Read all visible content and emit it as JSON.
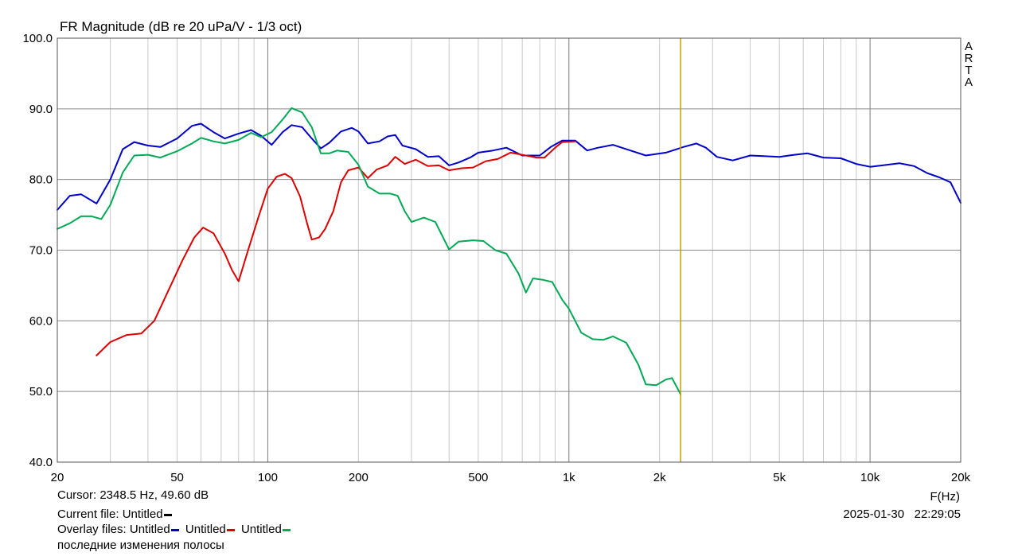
{
  "chart_data": {
    "type": "line",
    "title": "FR Magnitude (dB re 20 uPa/V - 1/3 oct)",
    "xlabel": "F(Hz)",
    "x_scale": "log",
    "xlim": [
      20,
      20000
    ],
    "ylim": [
      40,
      100
    ],
    "grid": true,
    "watermark": "ARTA",
    "x_tick_values": [
      20,
      50,
      100,
      200,
      500,
      1000,
      2000,
      5000,
      10000,
      20000
    ],
    "x_tick_labels": [
      "20",
      "50",
      "100",
      "200",
      "500",
      "1k",
      "2k",
      "5k",
      "10k",
      "20k"
    ],
    "y_tick_values": [
      100,
      90,
      80,
      70,
      60,
      50,
      40
    ],
    "y_tick_labels": [
      "100.0",
      "90.0",
      "80.0",
      "70.0",
      "60.0",
      "50.0",
      "40.0"
    ],
    "cursor": {
      "x": 2348.5,
      "color": "#c8a000"
    },
    "series": [
      {
        "color": "#0000cc",
        "points": [
          [
            20,
            75.7
          ],
          [
            22,
            77.7
          ],
          [
            24,
            77.9
          ],
          [
            27,
            76.6
          ],
          [
            30,
            80
          ],
          [
            33,
            84.3
          ],
          [
            36,
            85.3
          ],
          [
            40,
            84.8
          ],
          [
            44,
            84.6
          ],
          [
            50,
            85.8
          ],
          [
            56,
            87.6
          ],
          [
            60,
            87.9
          ],
          [
            66,
            86.7
          ],
          [
            72,
            85.8
          ],
          [
            80,
            86.5
          ],
          [
            88,
            87
          ],
          [
            95,
            86.2
          ],
          [
            103,
            84.9
          ],
          [
            112,
            86.7
          ],
          [
            120,
            87.7
          ],
          [
            130,
            87.4
          ],
          [
            140,
            85.8
          ],
          [
            150,
            84.4
          ],
          [
            160,
            85.2
          ],
          [
            175,
            86.8
          ],
          [
            190,
            87.3
          ],
          [
            200,
            86.8
          ],
          [
            215,
            85.1
          ],
          [
            235,
            85.4
          ],
          [
            250,
            86.1
          ],
          [
            265,
            86.3
          ],
          [
            280,
            84.8
          ],
          [
            310,
            84.3
          ],
          [
            340,
            83.2
          ],
          [
            370,
            83.3
          ],
          [
            400,
            82
          ],
          [
            430,
            82.4
          ],
          [
            470,
            83.1
          ],
          [
            500,
            83.8
          ],
          [
            560,
            84.1
          ],
          [
            620,
            84.5
          ],
          [
            700,
            83.4
          ],
          [
            800,
            83.4
          ],
          [
            870,
            84.6
          ],
          [
            950,
            85.5
          ],
          [
            1050,
            85.5
          ],
          [
            1150,
            84.1
          ],
          [
            1250,
            84.5
          ],
          [
            1400,
            84.9
          ],
          [
            1600,
            84.1
          ],
          [
            1800,
            83.4
          ],
          [
            2100,
            83.8
          ],
          [
            2400,
            84.6
          ],
          [
            2650,
            85.1
          ],
          [
            2850,
            84.5
          ],
          [
            3100,
            83.2
          ],
          [
            3500,
            82.7
          ],
          [
            4000,
            83.4
          ],
          [
            4500,
            83.3
          ],
          [
            5000,
            83.2
          ],
          [
            5600,
            83.5
          ],
          [
            6200,
            83.7
          ],
          [
            7000,
            83.1
          ],
          [
            8000,
            83
          ],
          [
            9000,
            82.2
          ],
          [
            10000,
            81.8
          ],
          [
            11000,
            82
          ],
          [
            12500,
            82.3
          ],
          [
            14000,
            81.9
          ],
          [
            15500,
            80.9
          ],
          [
            17000,
            80.3
          ],
          [
            18500,
            79.6
          ],
          [
            20000,
            76.7
          ]
        ]
      },
      {
        "color": "#dd0000",
        "points": [
          [
            27,
            55.1
          ],
          [
            30,
            57
          ],
          [
            34,
            58
          ],
          [
            38,
            58.2
          ],
          [
            42,
            60
          ],
          [
            47,
            64.5
          ],
          [
            52,
            68.5
          ],
          [
            57,
            71.8
          ],
          [
            61,
            73.2
          ],
          [
            66,
            72.4
          ],
          [
            72,
            69.5
          ],
          [
            76,
            67.2
          ],
          [
            80,
            65.6
          ],
          [
            86,
            70
          ],
          [
            93,
            74.6
          ],
          [
            100,
            78.7
          ],
          [
            107,
            80.4
          ],
          [
            114,
            80.8
          ],
          [
            120,
            80.2
          ],
          [
            128,
            77.6
          ],
          [
            135,
            73.8
          ],
          [
            140,
            71.5
          ],
          [
            148,
            71.8
          ],
          [
            155,
            73
          ],
          [
            165,
            75.5
          ],
          [
            175,
            79.6
          ],
          [
            185,
            81.3
          ],
          [
            200,
            81.7
          ],
          [
            215,
            80.2
          ],
          [
            230,
            81.4
          ],
          [
            250,
            82
          ],
          [
            265,
            83.2
          ],
          [
            285,
            82.2
          ],
          [
            310,
            82.8
          ],
          [
            340,
            81.9
          ],
          [
            370,
            82
          ],
          [
            400,
            81.3
          ],
          [
            440,
            81.6
          ],
          [
            480,
            81.7
          ],
          [
            530,
            82.6
          ],
          [
            580,
            82.9
          ],
          [
            640,
            83.8
          ],
          [
            700,
            83.5
          ],
          [
            780,
            83.1
          ],
          [
            830,
            83.1
          ],
          [
            900,
            84.5
          ],
          [
            950,
            85.3
          ],
          [
            1050,
            85.4
          ]
        ]
      },
      {
        "color": "#00aa55",
        "points": [
          [
            20,
            73
          ],
          [
            22,
            73.8
          ],
          [
            24,
            74.8
          ],
          [
            26,
            74.8
          ],
          [
            28,
            74.4
          ],
          [
            30,
            76.4
          ],
          [
            33,
            81
          ],
          [
            36,
            83.4
          ],
          [
            40,
            83.5
          ],
          [
            44,
            83.1
          ],
          [
            50,
            84
          ],
          [
            56,
            85.1
          ],
          [
            60,
            85.9
          ],
          [
            66,
            85.4
          ],
          [
            72,
            85.1
          ],
          [
            80,
            85.6
          ],
          [
            88,
            86.6
          ],
          [
            95,
            86
          ],
          [
            103,
            86.7
          ],
          [
            112,
            88.5
          ],
          [
            120,
            90.1
          ],
          [
            130,
            89.5
          ],
          [
            140,
            87.4
          ],
          [
            150,
            83.7
          ],
          [
            160,
            83.7
          ],
          [
            170,
            84.1
          ],
          [
            185,
            83.9
          ],
          [
            200,
            82.1
          ],
          [
            215,
            79
          ],
          [
            235,
            78
          ],
          [
            255,
            78
          ],
          [
            270,
            77.7
          ],
          [
            285,
            75.5
          ],
          [
            300,
            74
          ],
          [
            330,
            74.6
          ],
          [
            360,
            74
          ],
          [
            400,
            70.1
          ],
          [
            430,
            71.2
          ],
          [
            480,
            71.4
          ],
          [
            520,
            71.3
          ],
          [
            570,
            70
          ],
          [
            620,
            69.5
          ],
          [
            680,
            66.7
          ],
          [
            720,
            64
          ],
          [
            760,
            66
          ],
          [
            820,
            65.8
          ],
          [
            880,
            65.5
          ],
          [
            950,
            63
          ],
          [
            1000,
            61.7
          ],
          [
            1100,
            58.3
          ],
          [
            1200,
            57.4
          ],
          [
            1300,
            57.3
          ],
          [
            1400,
            57.8
          ],
          [
            1550,
            56.9
          ],
          [
            1700,
            53.8
          ],
          [
            1800,
            51
          ],
          [
            1950,
            50.9
          ],
          [
            2100,
            51.7
          ],
          [
            2200,
            51.9
          ],
          [
            2348.5,
            49.6
          ]
        ]
      }
    ]
  },
  "info": {
    "cursor_readout": "Cursor: 2348.5 Hz, 49.60 dB",
    "current_file_label": "Current file:",
    "current_file_name": "Untitled",
    "current_file_color": "#000000",
    "overlay_label": "Overlay files:",
    "overlays": [
      {
        "name": "Untitled",
        "color": "#0000cc"
      },
      {
        "name": "Untitled",
        "color": "#dd0000"
      },
      {
        "name": "Untitled",
        "color": "#00aa55"
      }
    ],
    "note": "последние изменения полосы",
    "timestamp": "2025-01-30   22:29:05"
  }
}
